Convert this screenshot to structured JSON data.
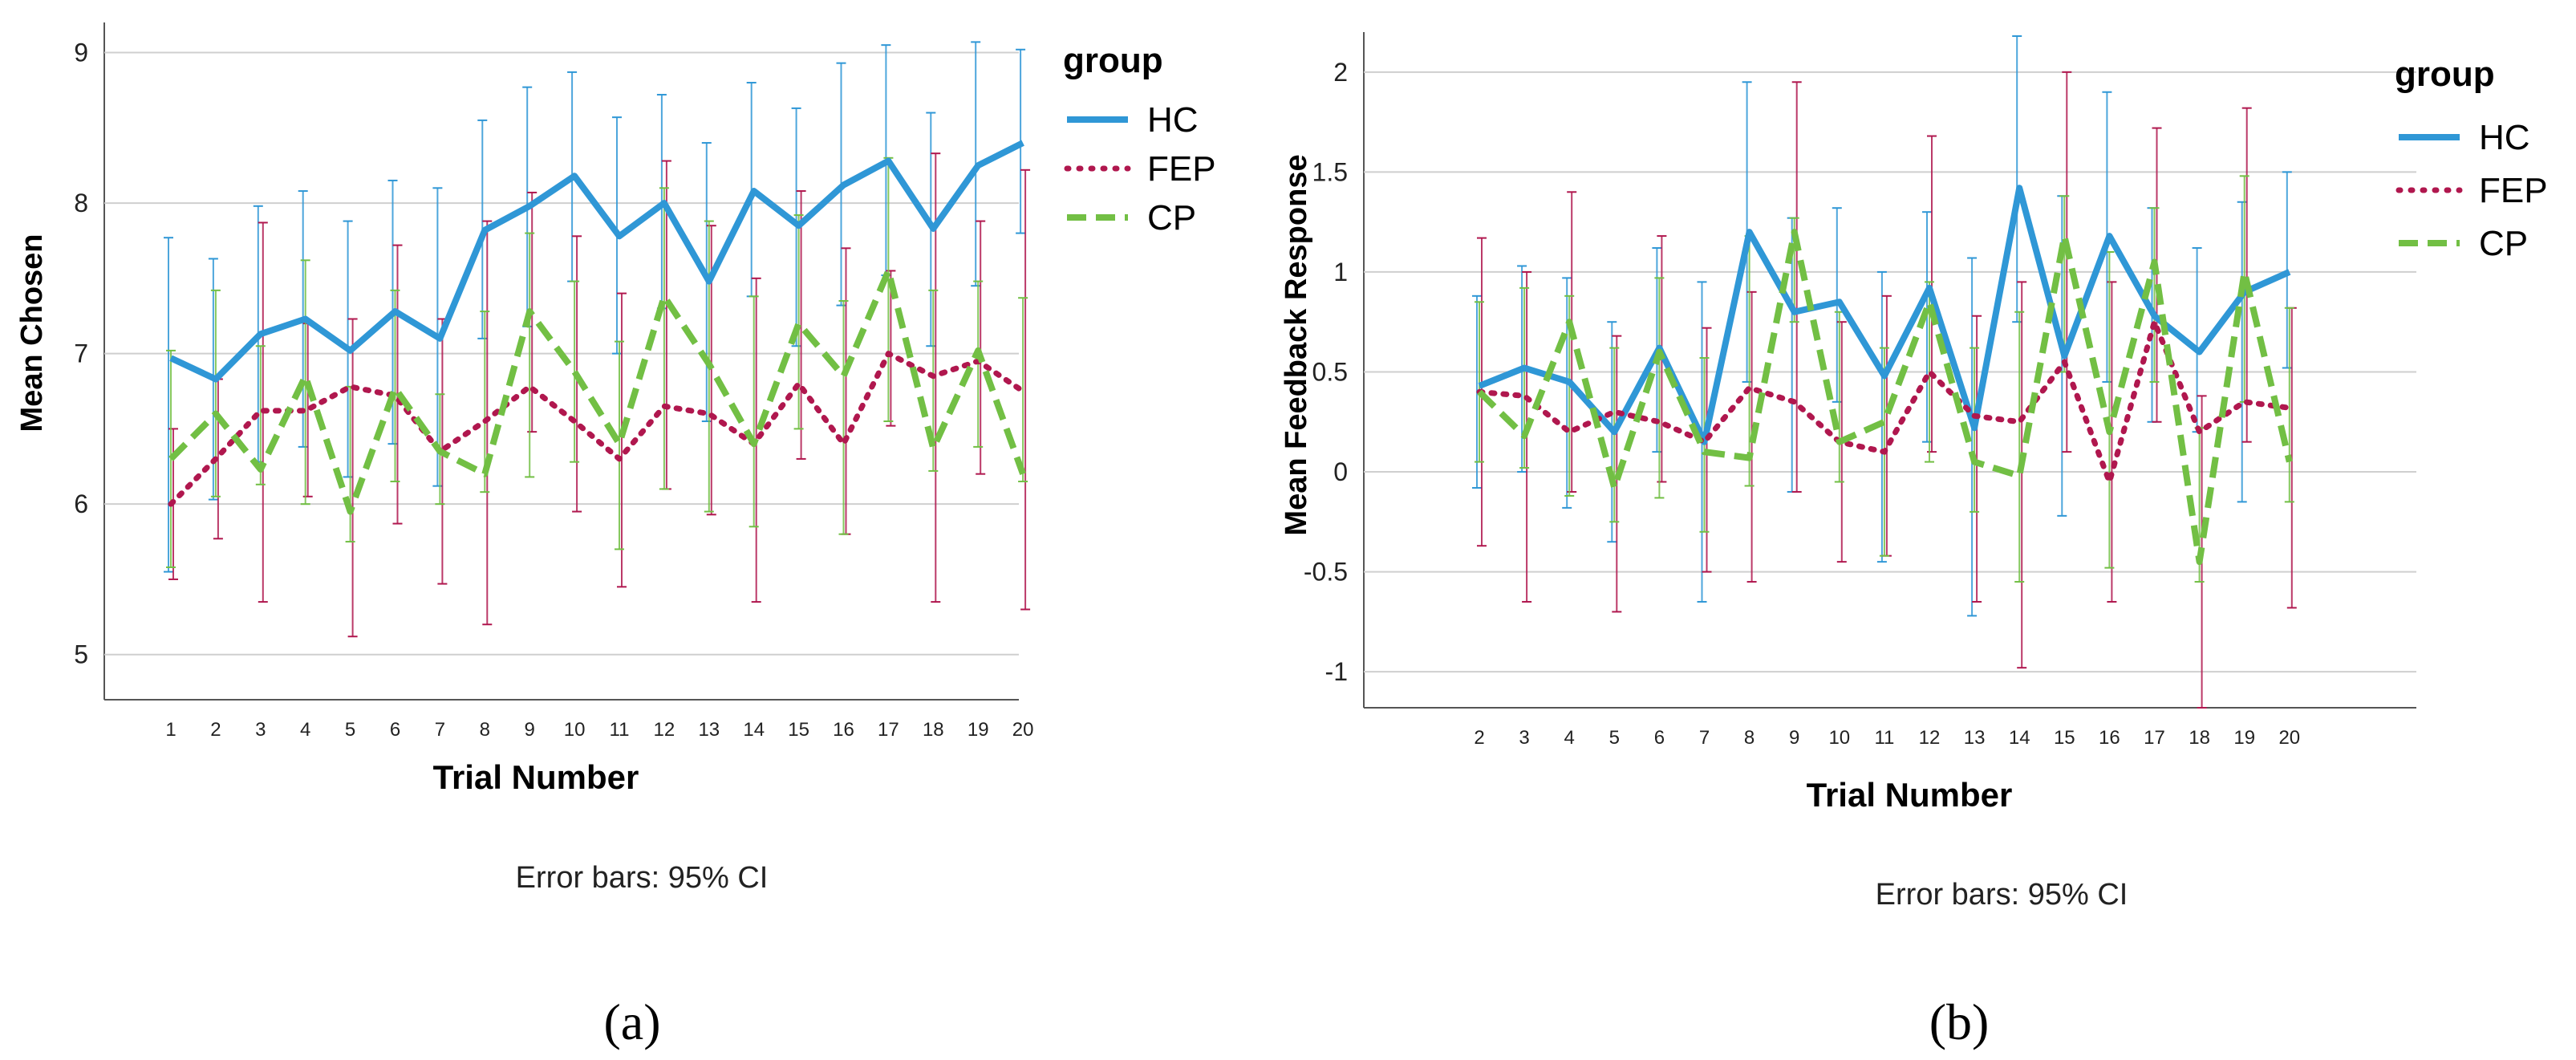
{
  "chart_data": [
    {
      "type": "line",
      "panel_label": "(a)",
      "xlabel": "Trial Number",
      "ylabel": "Mean Chosen",
      "note": "Error bars: 95% CI",
      "legend_title": "group",
      "legend_position": "right",
      "ylim": [
        4.7,
        9.2
      ],
      "yticks": [
        5,
        6,
        7,
        8,
        9
      ],
      "ytick_labels": [
        "5",
        "6",
        "7",
        "8",
        "9"
      ],
      "x": [
        1,
        2,
        3,
        4,
        5,
        6,
        7,
        8,
        9,
        10,
        11,
        12,
        13,
        14,
        15,
        16,
        17,
        18,
        19,
        20
      ],
      "x_labels": [
        "1",
        "2",
        "3",
        "4",
        "5",
        "6",
        "7",
        "8",
        "9",
        "10",
        "11",
        "12",
        "13",
        "14",
        "15",
        "16",
        "17",
        "18",
        "19",
        "20"
      ],
      "grid": true,
      "series": [
        {
          "name": "HC",
          "color": "#2f97d6",
          "style": "solid",
          "values": [
            6.97,
            6.83,
            7.13,
            7.23,
            7.02,
            7.28,
            7.1,
            7.82,
            7.98,
            8.18,
            7.78,
            8.0,
            7.48,
            8.08,
            7.85,
            8.12,
            8.28,
            7.83,
            8.25,
            8.4
          ],
          "lower": [
            5.55,
            6.03,
            6.28,
            6.38,
            6.18,
            6.4,
            6.12,
            7.1,
            7.18,
            7.48,
            7.0,
            7.3,
            6.55,
            7.38,
            7.05,
            7.32,
            7.52,
            7.05,
            7.45,
            7.8
          ],
          "upper": [
            7.77,
            7.63,
            7.98,
            8.08,
            7.88,
            8.15,
            8.1,
            8.55,
            8.77,
            8.87,
            8.57,
            8.72,
            8.4,
            8.8,
            8.63,
            8.93,
            9.05,
            8.6,
            9.07,
            9.02
          ]
        },
        {
          "name": "FEP",
          "color": "#b0174e",
          "style": "dotted",
          "values": [
            6.0,
            6.3,
            6.62,
            6.62,
            6.78,
            6.72,
            6.35,
            6.55,
            6.78,
            6.55,
            6.3,
            6.65,
            6.6,
            6.4,
            6.8,
            6.4,
            7.0,
            6.85,
            6.95,
            6.75
          ],
          "lower": [
            5.5,
            5.77,
            5.35,
            6.05,
            5.12,
            5.87,
            5.47,
            5.2,
            6.48,
            5.95,
            5.45,
            6.1,
            5.93,
            5.35,
            6.3,
            5.8,
            6.52,
            5.35,
            6.2,
            5.3
          ],
          "upper": [
            6.5,
            6.83,
            7.87,
            7.2,
            7.23,
            7.72,
            7.23,
            7.88,
            8.07,
            7.78,
            7.4,
            8.28,
            7.85,
            7.5,
            8.08,
            7.7,
            7.55,
            8.33,
            7.88,
            8.22
          ]
        },
        {
          "name": "CP",
          "color": "#72bf44",
          "style": "dashed",
          "values": [
            6.3,
            6.6,
            6.23,
            6.85,
            5.95,
            6.77,
            6.35,
            6.2,
            7.28,
            6.88,
            6.4,
            7.38,
            6.93,
            6.4,
            7.2,
            6.85,
            7.55,
            6.37,
            7.02,
            6.2
          ],
          "lower": [
            5.58,
            6.05,
            6.13,
            6.0,
            5.75,
            6.15,
            6.0,
            6.08,
            6.18,
            6.28,
            5.7,
            6.1,
            5.95,
            5.85,
            6.5,
            5.8,
            6.55,
            6.22,
            6.38,
            6.15
          ],
          "upper": [
            7.02,
            7.42,
            7.05,
            7.62,
            6.78,
            7.42,
            6.73,
            7.28,
            7.8,
            7.48,
            7.08,
            8.1,
            7.88,
            7.38,
            7.92,
            7.35,
            8.3,
            7.42,
            7.48,
            7.37
          ]
        }
      ]
    },
    {
      "type": "line",
      "panel_label": "(b)",
      "xlabel": "Trial Number",
      "ylabel": "Mean Feedback Response",
      "note": "Error bars: 95% CI",
      "legend_title": "group",
      "legend_position": "right",
      "ylim": [
        -1.18,
        2.2
      ],
      "yticks": [
        -1,
        -0.5,
        0,
        0.5,
        1,
        1.5,
        2
      ],
      "ytick_labels": [
        "-1",
        "-0.5",
        "0",
        "0.5",
        "1",
        "1.5",
        "2"
      ],
      "x": [
        2,
        3,
        4,
        5,
        6,
        7,
        8,
        9,
        10,
        11,
        12,
        13,
        14,
        15,
        16,
        17,
        18,
        19,
        20
      ],
      "x_labels": [
        "2",
        "3",
        "4",
        "5",
        "6",
        "7",
        "8",
        "9",
        "10",
        "11",
        "12",
        "13",
        "14",
        "15",
        "16",
        "17",
        "18",
        "19",
        "20"
      ],
      "grid": true,
      "series": [
        {
          "name": "HC",
          "color": "#2f97d6",
          "style": "solid",
          "values": [
            0.43,
            0.52,
            0.45,
            0.2,
            0.62,
            0.15,
            1.2,
            0.8,
            0.85,
            0.48,
            0.92,
            0.22,
            1.42,
            0.58,
            1.18,
            0.78,
            0.6,
            0.9,
            1.0
          ],
          "lower": [
            -0.08,
            0.0,
            -0.18,
            -0.35,
            0.1,
            -0.65,
            0.45,
            -0.1,
            0.35,
            -0.45,
            0.15,
            -0.72,
            0.75,
            -0.22,
            0.45,
            0.25,
            0.2,
            -0.15,
            0.52
          ],
          "upper": [
            0.88,
            1.03,
            0.97,
            0.75,
            1.12,
            0.95,
            1.95,
            1.27,
            1.32,
            1.0,
            1.3,
            1.07,
            2.18,
            1.38,
            1.9,
            1.32,
            1.12,
            1.35,
            1.5
          ]
        },
        {
          "name": "FEP",
          "color": "#b0174e",
          "style": "dotted",
          "values": [
            0.4,
            0.38,
            0.2,
            0.3,
            0.25,
            0.15,
            0.42,
            0.35,
            0.15,
            0.1,
            0.5,
            0.28,
            0.25,
            0.55,
            -0.05,
            0.75,
            0.2,
            0.35,
            0.32
          ],
          "lower": [
            -0.37,
            -0.65,
            -0.1,
            -0.7,
            -0.05,
            -0.5,
            -0.55,
            -0.1,
            -0.45,
            -0.42,
            0.1,
            -0.65,
            -0.98,
            0.1,
            -0.65,
            0.25,
            -1.18,
            0.15,
            -0.68
          ],
          "upper": [
            1.17,
            1.0,
            1.4,
            0.68,
            1.18,
            0.72,
            0.9,
            1.95,
            0.75,
            0.88,
            1.68,
            0.78,
            0.95,
            2.0,
            0.95,
            1.72,
            0.38,
            1.82,
            0.82
          ]
        },
        {
          "name": "CP",
          "color": "#72bf44",
          "style": "dashed",
          "values": [
            0.4,
            0.18,
            0.75,
            -0.08,
            0.6,
            0.1,
            0.07,
            1.2,
            0.15,
            0.25,
            0.85,
            0.05,
            -0.02,
            1.18,
            0.2,
            1.05,
            -0.45,
            1.0,
            0.05
          ],
          "lower": [
            0.05,
            0.02,
            -0.12,
            -0.25,
            -0.13,
            -0.3,
            -0.07,
            0.75,
            -0.05,
            -0.42,
            0.05,
            -0.2,
            -0.55,
            0.5,
            -0.48,
            0.45,
            -0.55,
            0.35,
            -0.15
          ],
          "upper": [
            0.85,
            0.92,
            0.88,
            0.62,
            0.97,
            0.57,
            1.18,
            1.27,
            0.8,
            0.62,
            0.95,
            0.62,
            0.8,
            1.38,
            1.1,
            1.32,
            0.22,
            1.48,
            0.82
          ]
        }
      ]
    }
  ]
}
